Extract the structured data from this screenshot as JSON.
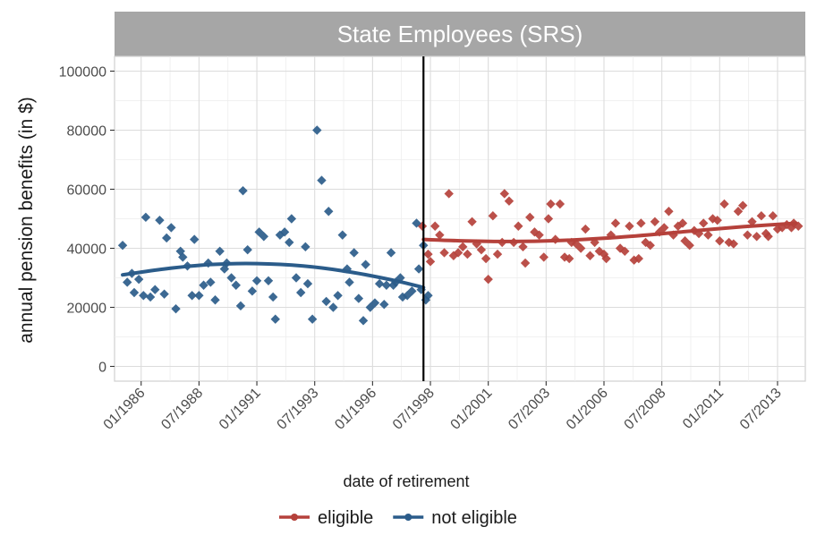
{
  "chart_data": {
    "type": "scatter",
    "title": "State Employees (SRS)",
    "xlabel": "date of retirement",
    "ylabel": "annual pension benefits (in $)",
    "ylim": [
      -5000,
      105000
    ],
    "xlim": [
      1984.85,
      2014.7
    ],
    "yticks": [
      0,
      20000,
      40000,
      60000,
      80000,
      100000
    ],
    "xticks": [
      {
        "x": 1986.0,
        "label": "01/1986"
      },
      {
        "x": 1988.5,
        "label": "07/1988"
      },
      {
        "x": 1991.0,
        "label": "01/1991"
      },
      {
        "x": 1993.5,
        "label": "07/1993"
      },
      {
        "x": 1996.0,
        "label": "01/1996"
      },
      {
        "x": 1998.5,
        "label": "07/1998"
      },
      {
        "x": 2001.0,
        "label": "01/2001"
      },
      {
        "x": 2003.5,
        "label": "07/2003"
      },
      {
        "x": 2006.0,
        "label": "01/2006"
      },
      {
        "x": 2008.5,
        "label": "07/2008"
      },
      {
        "x": 2011.0,
        "label": "01/2011"
      },
      {
        "x": 2013.5,
        "label": "07/2013"
      }
    ],
    "cutoff": 1998.2,
    "grid": true,
    "legend_position": "bottom",
    "series": [
      {
        "name": "eligible",
        "color": "#B5413B",
        "points": [
          [
            1998.15,
            47500
          ],
          [
            1998.4,
            38000
          ],
          [
            1998.5,
            35500
          ],
          [
            1998.7,
            47500
          ],
          [
            1998.9,
            44500
          ],
          [
            1999.1,
            38500
          ],
          [
            1999.3,
            58500
          ],
          [
            1999.5,
            37500
          ],
          [
            1999.7,
            38500
          ],
          [
            1999.9,
            40500
          ],
          [
            2000.1,
            38000
          ],
          [
            2000.3,
            49000
          ],
          [
            2000.5,
            41500
          ],
          [
            2000.7,
            39500
          ],
          [
            2000.9,
            36500
          ],
          [
            2001.0,
            29500
          ],
          [
            2001.2,
            51000
          ],
          [
            2001.4,
            38000
          ],
          [
            2001.6,
            42000
          ],
          [
            2001.7,
            58500
          ],
          [
            2001.9,
            56000
          ],
          [
            2002.1,
            42000
          ],
          [
            2002.3,
            47500
          ],
          [
            2002.5,
            40500
          ],
          [
            2002.6,
            35000
          ],
          [
            2002.8,
            50500
          ],
          [
            2003.0,
            45500
          ],
          [
            2003.2,
            44500
          ],
          [
            2003.4,
            37000
          ],
          [
            2003.6,
            50000
          ],
          [
            2003.7,
            55000
          ],
          [
            2003.9,
            43000
          ],
          [
            2004.1,
            55000
          ],
          [
            2004.3,
            37000
          ],
          [
            2004.5,
            36500
          ],
          [
            2004.6,
            42000
          ],
          [
            2004.8,
            41500
          ],
          [
            2005.0,
            40000
          ],
          [
            2005.2,
            46500
          ],
          [
            2005.4,
            37500
          ],
          [
            2005.6,
            42000
          ],
          [
            2005.8,
            39000
          ],
          [
            2006.0,
            38000
          ],
          [
            2006.1,
            36500
          ],
          [
            2006.3,
            44500
          ],
          [
            2006.5,
            48500
          ],
          [
            2006.7,
            40000
          ],
          [
            2006.9,
            39000
          ],
          [
            2007.1,
            47500
          ],
          [
            2007.3,
            36000
          ],
          [
            2007.5,
            36500
          ],
          [
            2007.6,
            48500
          ],
          [
            2007.8,
            42000
          ],
          [
            2008.0,
            41000
          ],
          [
            2008.2,
            49000
          ],
          [
            2008.4,
            45500
          ],
          [
            2008.6,
            47000
          ],
          [
            2008.8,
            52500
          ],
          [
            2009.0,
            44500
          ],
          [
            2009.2,
            47500
          ],
          [
            2009.4,
            48500
          ],
          [
            2009.5,
            42500
          ],
          [
            2009.7,
            41000
          ],
          [
            2009.9,
            46000
          ],
          [
            2010.1,
            45000
          ],
          [
            2010.3,
            48500
          ],
          [
            2010.5,
            44500
          ],
          [
            2010.7,
            50000
          ],
          [
            2010.9,
            49500
          ],
          [
            2011.0,
            42500
          ],
          [
            2011.2,
            55000
          ],
          [
            2011.4,
            42000
          ],
          [
            2011.6,
            41500
          ],
          [
            2011.8,
            52500
          ],
          [
            2012.0,
            54500
          ],
          [
            2012.2,
            44500
          ],
          [
            2012.4,
            49000
          ],
          [
            2012.6,
            44000
          ],
          [
            2012.8,
            51000
          ],
          [
            2013.0,
            45000
          ],
          [
            2013.1,
            44000
          ],
          [
            2013.3,
            51000
          ],
          [
            2013.5,
            46500
          ],
          [
            2013.7,
            47000
          ],
          [
            2013.9,
            48000
          ],
          [
            2014.1,
            47000
          ],
          [
            2014.2,
            48500
          ],
          [
            2014.4,
            47500
          ]
        ],
        "fit": [
          [
            1998.2,
            43000
          ],
          [
            2000.0,
            42500
          ],
          [
            2002.0,
            42300
          ],
          [
            2004.0,
            42600
          ],
          [
            2006.0,
            43400
          ],
          [
            2008.0,
            44600
          ],
          [
            2010.0,
            46000
          ],
          [
            2012.0,
            47300
          ],
          [
            2014.3,
            48500
          ]
        ]
      },
      {
        "name": "not eligible",
        "color": "#2B5C8A",
        "points": [
          [
            1985.2,
            41000
          ],
          [
            1985.4,
            28500
          ],
          [
            1985.6,
            31500
          ],
          [
            1985.7,
            25000
          ],
          [
            1985.9,
            29500
          ],
          [
            1986.1,
            24000
          ],
          [
            1986.2,
            50500
          ],
          [
            1986.4,
            23500
          ],
          [
            1986.6,
            26000
          ],
          [
            1986.8,
            49500
          ],
          [
            1987.0,
            24500
          ],
          [
            1987.1,
            43500
          ],
          [
            1987.3,
            47000
          ],
          [
            1987.5,
            19500
          ],
          [
            1987.7,
            39000
          ],
          [
            1987.8,
            37000
          ],
          [
            1988.0,
            34000
          ],
          [
            1988.2,
            24000
          ],
          [
            1988.3,
            43000
          ],
          [
            1988.5,
            24000
          ],
          [
            1988.7,
            27500
          ],
          [
            1988.9,
            35000
          ],
          [
            1989.0,
            28500
          ],
          [
            1989.2,
            22500
          ],
          [
            1989.4,
            39000
          ],
          [
            1989.6,
            33000
          ],
          [
            1989.7,
            35000
          ],
          [
            1989.9,
            30000
          ],
          [
            1990.1,
            27500
          ],
          [
            1990.3,
            20500
          ],
          [
            1990.4,
            59500
          ],
          [
            1990.6,
            39500
          ],
          [
            1990.8,
            25500
          ],
          [
            1991.0,
            29000
          ],
          [
            1991.1,
            45500
          ],
          [
            1991.3,
            44000
          ],
          [
            1991.5,
            29000
          ],
          [
            1991.7,
            23500
          ],
          [
            1991.8,
            16000
          ],
          [
            1992.0,
            44500
          ],
          [
            1992.2,
            45500
          ],
          [
            1992.4,
            42000
          ],
          [
            1992.5,
            50000
          ],
          [
            1992.7,
            30000
          ],
          [
            1992.9,
            25000
          ],
          [
            1993.1,
            40500
          ],
          [
            1993.2,
            28000
          ],
          [
            1993.4,
            16000
          ],
          [
            1993.6,
            80000
          ],
          [
            1993.8,
            63000
          ],
          [
            1994.0,
            22000
          ],
          [
            1994.1,
            52500
          ],
          [
            1994.3,
            20000
          ],
          [
            1994.5,
            24000
          ],
          [
            1994.7,
            44500
          ],
          [
            1994.9,
            33000
          ],
          [
            1995.0,
            28500
          ],
          [
            1995.2,
            38500
          ],
          [
            1995.4,
            23000
          ],
          [
            1995.6,
            15500
          ],
          [
            1995.7,
            34500
          ],
          [
            1995.9,
            20000
          ],
          [
            1996.1,
            21500
          ],
          [
            1996.3,
            28000
          ],
          [
            1996.5,
            21000
          ],
          [
            1996.6,
            27500
          ],
          [
            1996.8,
            38500
          ],
          [
            1996.9,
            27500
          ],
          [
            1997.0,
            28500
          ],
          [
            1997.2,
            30000
          ],
          [
            1997.3,
            23500
          ],
          [
            1997.5,
            24000
          ],
          [
            1997.7,
            25500
          ],
          [
            1997.9,
            48500
          ],
          [
            1998.0,
            33000
          ],
          [
            1998.1,
            26000
          ],
          [
            1998.2,
            41000
          ],
          [
            1998.3,
            22500
          ],
          [
            1998.4,
            24000
          ]
        ],
        "fit": [
          [
            1985.2,
            31000
          ],
          [
            1987.0,
            33000
          ],
          [
            1989.0,
            34500
          ],
          [
            1991.0,
            34800
          ],
          [
            1993.0,
            34000
          ],
          [
            1995.0,
            32000
          ],
          [
            1997.0,
            29000
          ],
          [
            1998.2,
            26700
          ]
        ]
      }
    ]
  }
}
